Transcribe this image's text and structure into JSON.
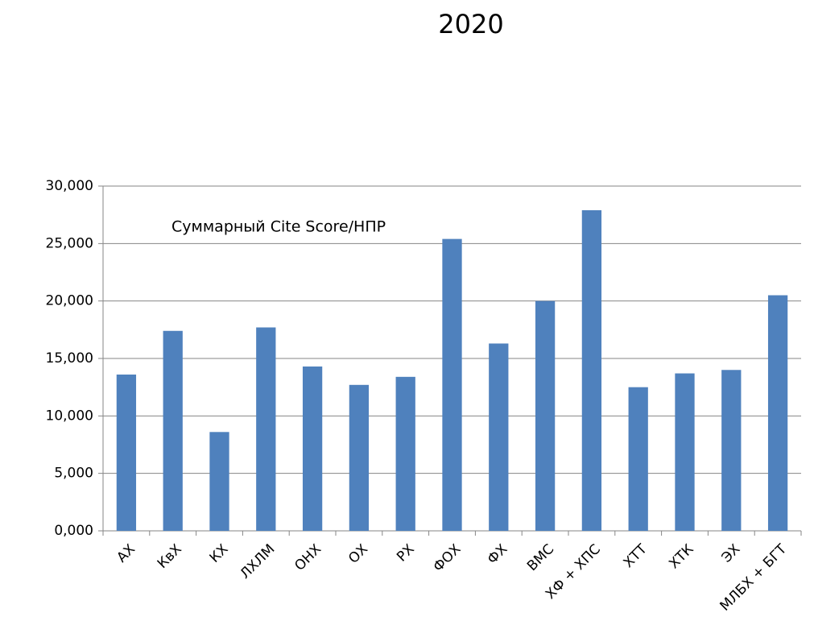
{
  "chart_data": {
    "type": "bar",
    "title": "2020",
    "annotation": "Суммарный Cite Score/НПР",
    "categories": [
      "АХ",
      "КвХ",
      "КХ",
      "ЛХЛМ",
      "ОНХ",
      "ОХ",
      "РХ",
      "ФОХ",
      "ФХ",
      "ВМС",
      "ХФ + ХПС",
      "ХТТ",
      "ХТК",
      "ЭХ",
      "МЛБХ + БГТ"
    ],
    "values": [
      13.6,
      17.4,
      8.6,
      17.7,
      14.3,
      12.7,
      13.4,
      25.4,
      16.3,
      20.0,
      27.9,
      12.5,
      13.7,
      14.0,
      20.5
    ],
    "color": "#4f81bd",
    "ylim": [
      0,
      30
    ],
    "yticks": [
      {
        "value": 0,
        "label": "0,000"
      },
      {
        "value": 5,
        "label": "5,000"
      },
      {
        "value": 10,
        "label": "10,000"
      },
      {
        "value": 15,
        "label": "15,000"
      },
      {
        "value": 20,
        "label": "20,000"
      },
      {
        "value": 25,
        "label": "25,000"
      },
      {
        "value": 30,
        "label": "30,000"
      }
    ],
    "grid": true
  }
}
